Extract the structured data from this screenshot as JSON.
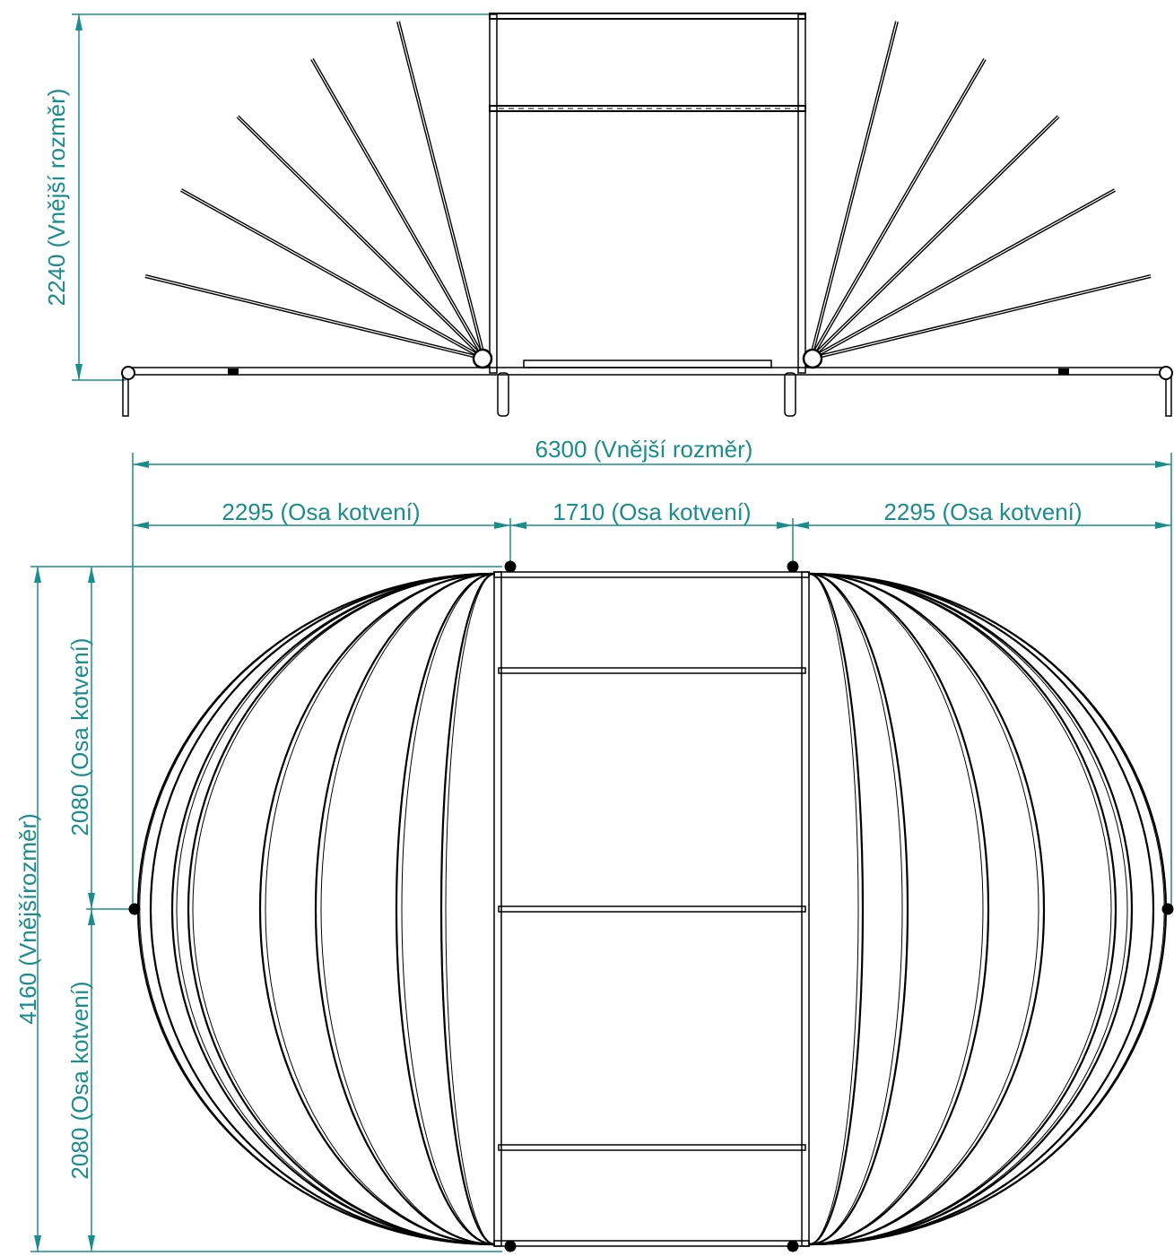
{
  "side_view": {
    "height_dim": {
      "value": "2240",
      "note": "(Vnější rozměr)"
    }
  },
  "top_view": {
    "overall_width_dim": {
      "value": "6300",
      "note": "(Vnější rozměr)"
    },
    "left_anchor_dim": {
      "value": "2295",
      "note": "(Osa kotvení)"
    },
    "center_anchor_dim": {
      "value": "1710",
      "note": "(Osa kotvení)"
    },
    "right_anchor_dim": {
      "value": "2295",
      "note": "(Osa kotvení)"
    },
    "overall_depth_dim": {
      "value": "4160",
      "note": "(Vnějšírozměr)"
    },
    "upper_half_dim": {
      "value": "2080",
      "note": "(Osa kotvení)"
    },
    "lower_half_dim": {
      "value": "2080",
      "note": "(Osa kotvení)"
    }
  },
  "colors": {
    "dimension": "#1a8c8c",
    "structure": "#000000"
  }
}
